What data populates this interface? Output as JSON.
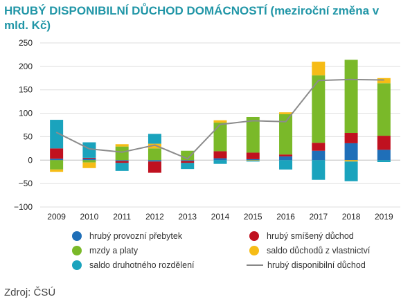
{
  "title_main": "HRUBÝ DISPONIBILNÍ DŮCHOD DOMÁCNOSTÍ",
  "title_sub": "(meziroční změna v mld. Kč)",
  "source": "Zdroj: ČSÚ",
  "chart_data": {
    "type": "bar",
    "stacked": true,
    "categories": [
      "2009",
      "2010",
      "2011",
      "2012",
      "2013",
      "2014",
      "2015",
      "2016",
      "2017",
      "2018",
      "2019"
    ],
    "ylim": [
      -100,
      250
    ],
    "yticks": [
      -100,
      -50,
      0,
      50,
      100,
      150,
      200,
      250
    ],
    "grid": true,
    "legend_placement": "bottom",
    "series": [
      {
        "name": "hrubý provozní přebytek",
        "color": "#1f6fb8",
        "values": [
          3,
          3,
          -2,
          -3,
          -2,
          4,
          2,
          8,
          20,
          36,
          22
        ]
      },
      {
        "name": "hrubý smíšený důchod",
        "color": "#c0111f",
        "values": [
          22,
          2,
          -4,
          -24,
          -4,
          15,
          14,
          4,
          17,
          22,
          30
        ]
      },
      {
        "name": "mzdy a platy",
        "color": "#7ab929",
        "values": [
          -20,
          -5,
          29,
          25,
          20,
          61,
          76,
          86,
          144,
          156,
          112
        ]
      },
      {
        "name": "saldo důchodů z vlastnictví",
        "color": "#f6bc16",
        "values": [
          -5,
          -12,
          5,
          10,
          0,
          5,
          -1,
          4,
          29,
          -3,
          11
        ]
      },
      {
        "name": "saldo druhotného rozdělení",
        "color": "#1aa3bd",
        "values": [
          61,
          33,
          -17,
          21,
          -13,
          -8,
          -2,
          -20,
          -42,
          -42,
          -4
        ]
      }
    ],
    "line": {
      "name": "hrubý disponibilní důchod",
      "color": "#8c8c8c",
      "values": [
        59,
        24,
        17,
        32,
        3,
        76,
        84,
        82,
        170,
        172,
        171
      ]
    }
  }
}
